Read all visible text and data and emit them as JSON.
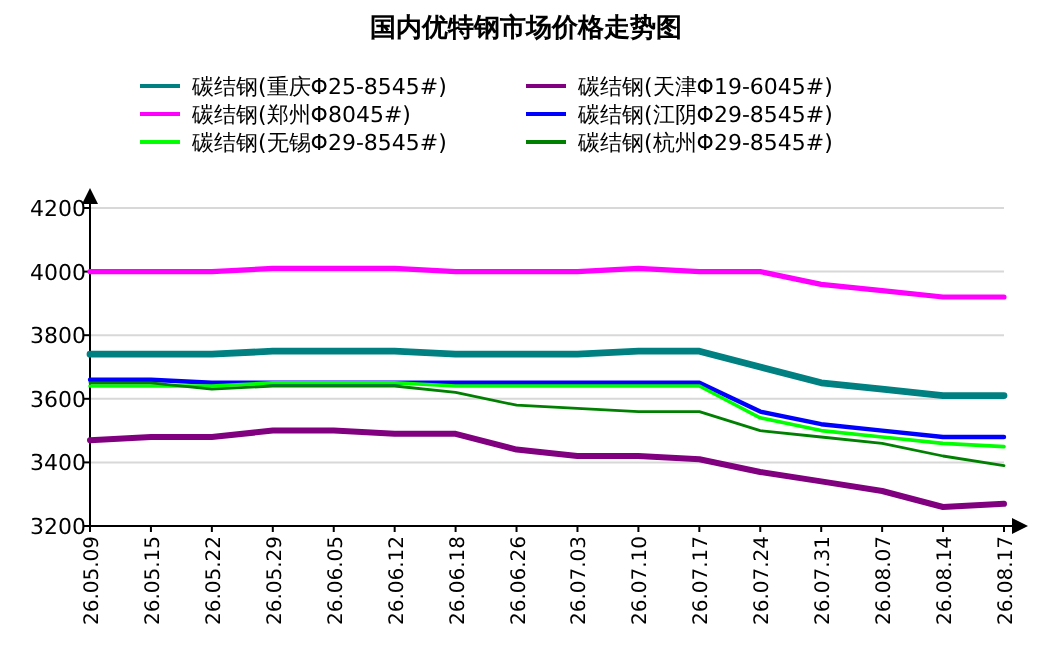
{
  "chart_data": {
    "type": "line",
    "title": "国内优特钢市场价格走势图",
    "categories": [
      "26.05.09",
      "26.05.15",
      "26.05.22",
      "26.05.29",
      "26.06.05",
      "26.06.12",
      "26.06.18",
      "26.06.26",
      "26.07.03",
      "26.07.10",
      "26.07.17",
      "26.07.24",
      "26.07.31",
      "26.08.07",
      "26.08.14",
      "26.08.17"
    ],
    "series": [
      {
        "name": "碳结钢(重庆Φ25-8545#)",
        "color": "#008080",
        "values": [
          3740,
          3740,
          3740,
          3750,
          3750,
          3750,
          3740,
          3740,
          3740,
          3750,
          3750,
          3700,
          3650,
          3630,
          3610,
          3610
        ]
      },
      {
        "name": "碳结钢(天津Φ19-6045#)",
        "color": "#800080",
        "values": [
          3470,
          3480,
          3480,
          3500,
          3500,
          3490,
          3490,
          3440,
          3420,
          3420,
          3410,
          3370,
          3340,
          3310,
          3260,
          3270
        ]
      },
      {
        "name": "碳结钢(郑州Φ8045#)",
        "color": "#ff00ff",
        "values": [
          4000,
          4000,
          4000,
          4010,
          4010,
          4010,
          4000,
          4000,
          4000,
          4010,
          4000,
          4000,
          3960,
          3940,
          3920,
          3920
        ]
      },
      {
        "name": "碳结钢(江阴Φ29-8545#)",
        "color": "#0000ff",
        "values": [
          3660,
          3660,
          3650,
          3650,
          3650,
          3650,
          3650,
          3650,
          3650,
          3650,
          3650,
          3560,
          3520,
          3500,
          3480,
          3480
        ]
      },
      {
        "name": "碳结钢(无锡Φ29-8545#)",
        "color": "#00ff00",
        "values": [
          3640,
          3640,
          3640,
          3650,
          3650,
          3650,
          3640,
          3640,
          3640,
          3640,
          3640,
          3540,
          3500,
          3480,
          3460,
          3450
        ]
      },
      {
        "name": "碳结钢(杭州Φ29-8545#)",
        "color": "#008000",
        "values": [
          3650,
          3650,
          3630,
          3640,
          3640,
          3640,
          3620,
          3580,
          3570,
          3560,
          3560,
          3500,
          3480,
          3460,
          3420,
          3390
        ]
      }
    ],
    "ylim": [
      3200,
      4200
    ],
    "yticks": [
      3200,
      3400,
      3600,
      3800,
      4000,
      4200
    ],
    "grid": "y",
    "legend": "top",
    "marker": "none",
    "line_style": "solid"
  }
}
